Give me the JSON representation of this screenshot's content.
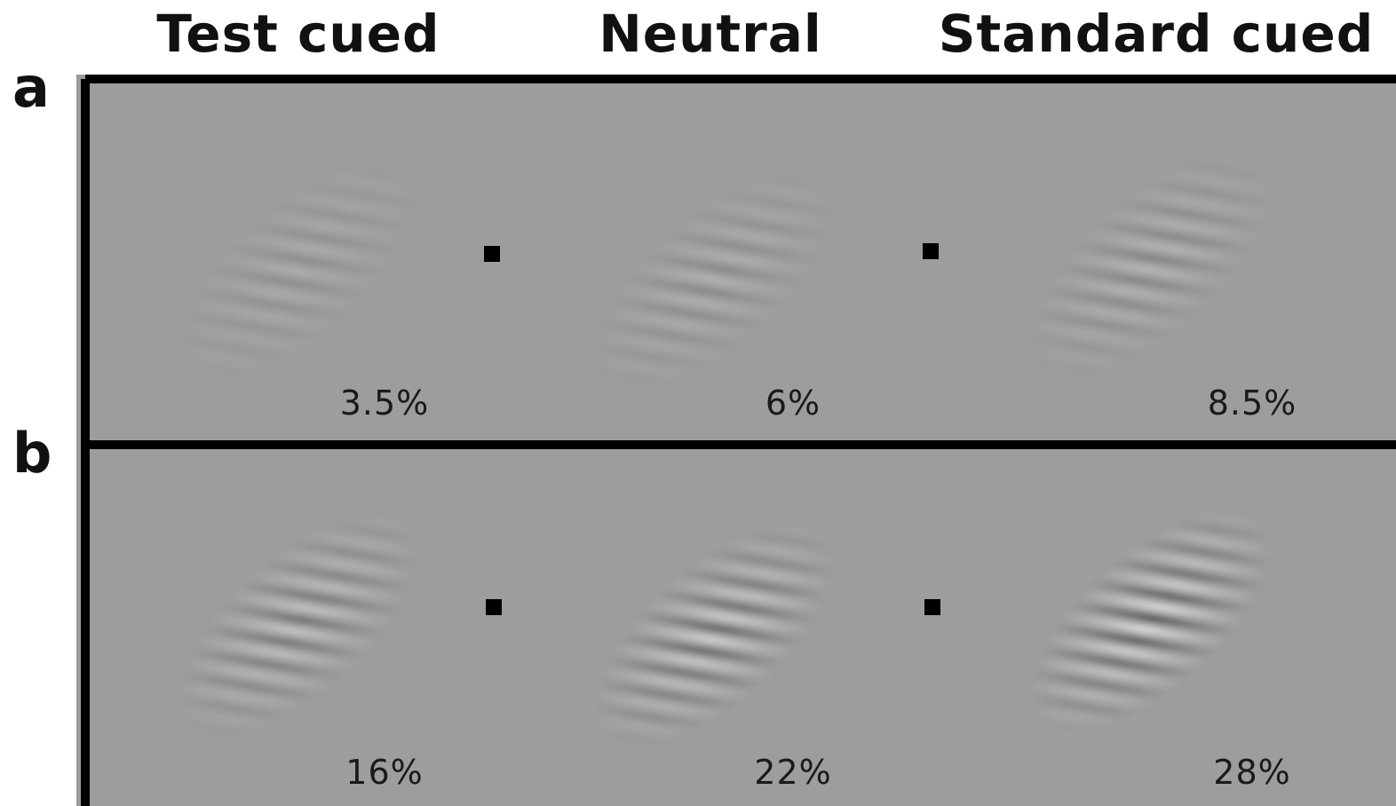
{
  "column_headers": [
    "Test cued",
    "Neutral",
    "Standard cued"
  ],
  "rows": [
    {
      "label": "a",
      "contrasts": [
        "3.5%",
        "6%",
        "8.5%"
      ],
      "contrast_values": [
        0.035,
        0.06,
        0.085
      ]
    },
    {
      "label": "b",
      "contrasts": [
        "16%",
        "22%",
        "28%"
      ],
      "contrast_values": [
        0.16,
        0.22,
        0.28
      ]
    }
  ],
  "colors": {
    "background": "#9d9d9d",
    "frame": "#000000",
    "fixation": "#000000"
  }
}
